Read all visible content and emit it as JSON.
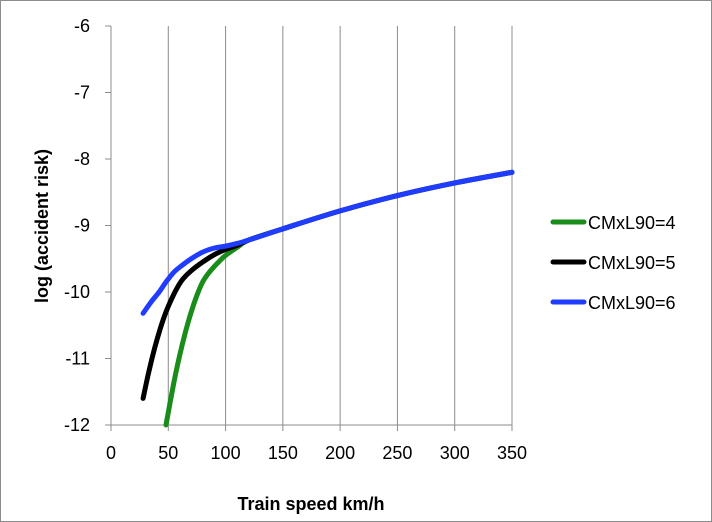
{
  "chart_data": {
    "type": "line",
    "title": "",
    "xlabel": "Train speed km/h",
    "ylabel": "log (accident risk)",
    "xlim": [
      0,
      350
    ],
    "ylim": [
      -12,
      -6
    ],
    "xticks": [
      0,
      50,
      100,
      150,
      200,
      250,
      300,
      350
    ],
    "yticks": [
      -12,
      -11,
      -10,
      -9,
      -8,
      -7,
      -6
    ],
    "x_tick_labels": [
      "0",
      "50",
      "100",
      "150",
      "200",
      "250",
      "300",
      "350"
    ],
    "y_tick_labels": [
      "-12",
      "-11",
      "-10",
      "-9",
      "-8",
      "-7",
      "-6"
    ],
    "grid": "vertical",
    "legend_position": "right",
    "series": [
      {
        "name": "CMxL90=4",
        "color": "#1a8c1a",
        "x": [
          48,
          55,
          60,
          65,
          70,
          75,
          80,
          85,
          90,
          95,
          100,
          110,
          120,
          150,
          200,
          250,
          300,
          350
        ],
        "y": [
          -12.0,
          -11.35,
          -10.95,
          -10.6,
          -10.3,
          -10.05,
          -9.85,
          -9.72,
          -9.62,
          -9.53,
          -9.45,
          -9.33,
          -9.22,
          -9.05,
          -8.78,
          -8.55,
          -8.36,
          -8.2
        ]
      },
      {
        "name": "CMxL90=5",
        "color": "#000000",
        "x": [
          28,
          33,
          38,
          43,
          48,
          53,
          58,
          63,
          70,
          80,
          90,
          100,
          110,
          120,
          150,
          200,
          250,
          300,
          350
        ],
        "y": [
          -11.6,
          -11.2,
          -10.85,
          -10.55,
          -10.3,
          -10.1,
          -9.93,
          -9.8,
          -9.68,
          -9.55,
          -9.44,
          -9.36,
          -9.3,
          -9.22,
          -9.05,
          -8.78,
          -8.55,
          -8.36,
          -8.2
        ]
      },
      {
        "name": "CMxL90=6",
        "color": "#1f3cff",
        "x": [
          28,
          35,
          42,
          48,
          55,
          62,
          70,
          80,
          90,
          100,
          110,
          120,
          150,
          200,
          250,
          300,
          350
        ],
        "y": [
          -10.32,
          -10.15,
          -10.0,
          -9.85,
          -9.7,
          -9.6,
          -9.5,
          -9.4,
          -9.34,
          -9.31,
          -9.27,
          -9.22,
          -9.05,
          -8.78,
          -8.55,
          -8.36,
          -8.2
        ]
      }
    ]
  }
}
